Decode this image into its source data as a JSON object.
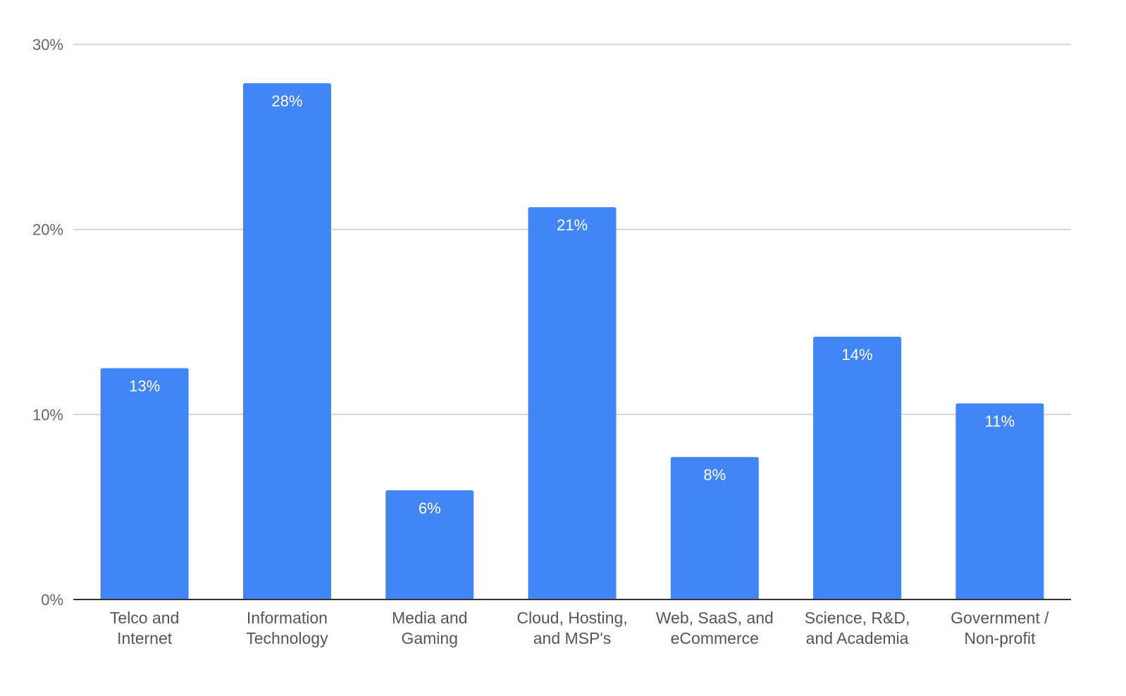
{
  "chart_data": {
    "type": "bar",
    "categories": [
      [
        "Telco and",
        "Internet"
      ],
      [
        "Information",
        "Technology"
      ],
      [
        "Media and",
        "Gaming"
      ],
      [
        "Cloud, Hosting,",
        "and MSP's"
      ],
      [
        "Web, SaaS, and",
        "eCommerce"
      ],
      [
        "Science, R&D,",
        "and Academia"
      ],
      [
        "Government /",
        "Non-profit"
      ]
    ],
    "values": [
      12.5,
      27.9,
      5.9,
      21.2,
      7.7,
      14.2,
      10.6
    ],
    "data_labels": [
      "13%",
      "28%",
      "6%",
      "21%",
      "8%",
      "14%",
      "11%"
    ],
    "ylim": [
      0,
      30
    ],
    "y_ticks": [
      0,
      10,
      20,
      30
    ],
    "y_tick_labels": [
      "0%",
      "10%",
      "20%",
      "30%"
    ],
    "title": "",
    "xlabel": "",
    "ylabel": "",
    "grid": true,
    "legend": "none",
    "colors": {
      "bar": "#4285f4",
      "grid": "#cccccc",
      "axis": "#333333"
    }
  }
}
